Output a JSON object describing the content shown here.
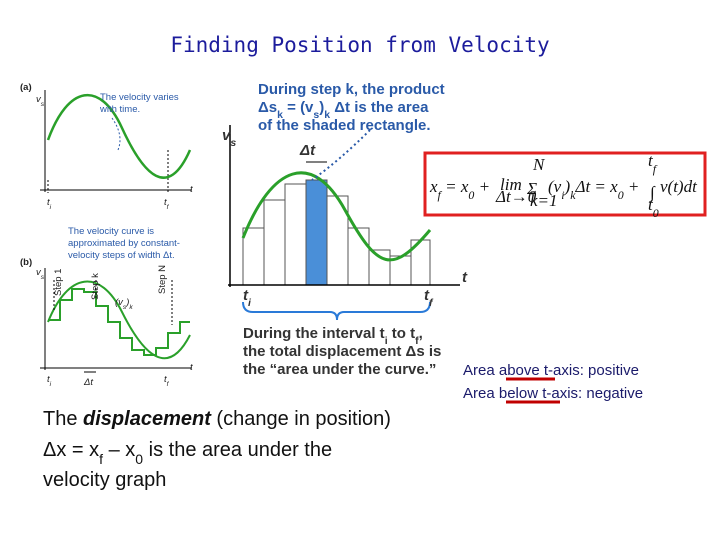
{
  "title": "Finding Position from Velocity",
  "figure_a": {
    "label": "(a)",
    "y_axis": [
      "v",
      "s"
    ],
    "x_axis": "t",
    "t_start": [
      "t",
      "i"
    ],
    "t_end": [
      "t",
      "f"
    ],
    "note": [
      "The velocity varies",
      "with time."
    ]
  },
  "figure_b": {
    "label": "(b)",
    "y_axis": [
      "v",
      "s"
    ],
    "x_axis": "t",
    "t_start": [
      "t",
      "i"
    ],
    "t_end": [
      "t",
      "f"
    ],
    "step_width": "Δt",
    "step_value": [
      "(v",
      "s",
      ")",
      "k"
    ],
    "steps": [
      "Step 1",
      "Step k",
      "Step N"
    ],
    "note": [
      "The velocity curve is",
      "approximated by constant-",
      "velocity steps of width Δt."
    ]
  },
  "main_figure": {
    "callout": [
      "During step k, the product",
      [
        "Δs",
        "k",
        " = (v",
        "s",
        ")",
        "k",
        " Δt is the area"
      ],
      "of the shaded rectangle."
    ],
    "y_axis": [
      "v",
      "s"
    ],
    "x_axis": "t",
    "step_width": "Δt",
    "t_start": [
      "t",
      "i"
    ],
    "t_end": [
      "t",
      "f"
    ],
    "caption": [
      [
        "During the interval t",
        "i",
        " to t",
        "f",
        ","
      ],
      "the total displacement Δs is",
      "the “area under the curve.”"
    ]
  },
  "equation": {
    "lhs": [
      "x",
      "f",
      " = x",
      "0",
      " +"
    ],
    "limit": "lim",
    "limit_under": "Δt→0",
    "sum": "Σ",
    "sum_top": "N",
    "sum_bottom": "k=1",
    "middle": [
      "(v",
      "i",
      ")",
      "k",
      "Δt = x",
      "0",
      " +"
    ],
    "integral": "∫",
    "upper": [
      "t",
      "f"
    ],
    "lower": [
      "t",
      "0"
    ],
    "integrand": "v(t)dt"
  },
  "side_notes": [
    "Area above t-axis: positive",
    "Area below t-axis: negative"
  ],
  "body": {
    "line1": {
      "before": "The ",
      "emphasis": "displacement",
      "after": " (change in position)"
    },
    "line2": [
      "Δx = x",
      "f",
      " – x",
      "0",
      "  is the area under the"
    ],
    "line3": "velocity graph"
  }
}
